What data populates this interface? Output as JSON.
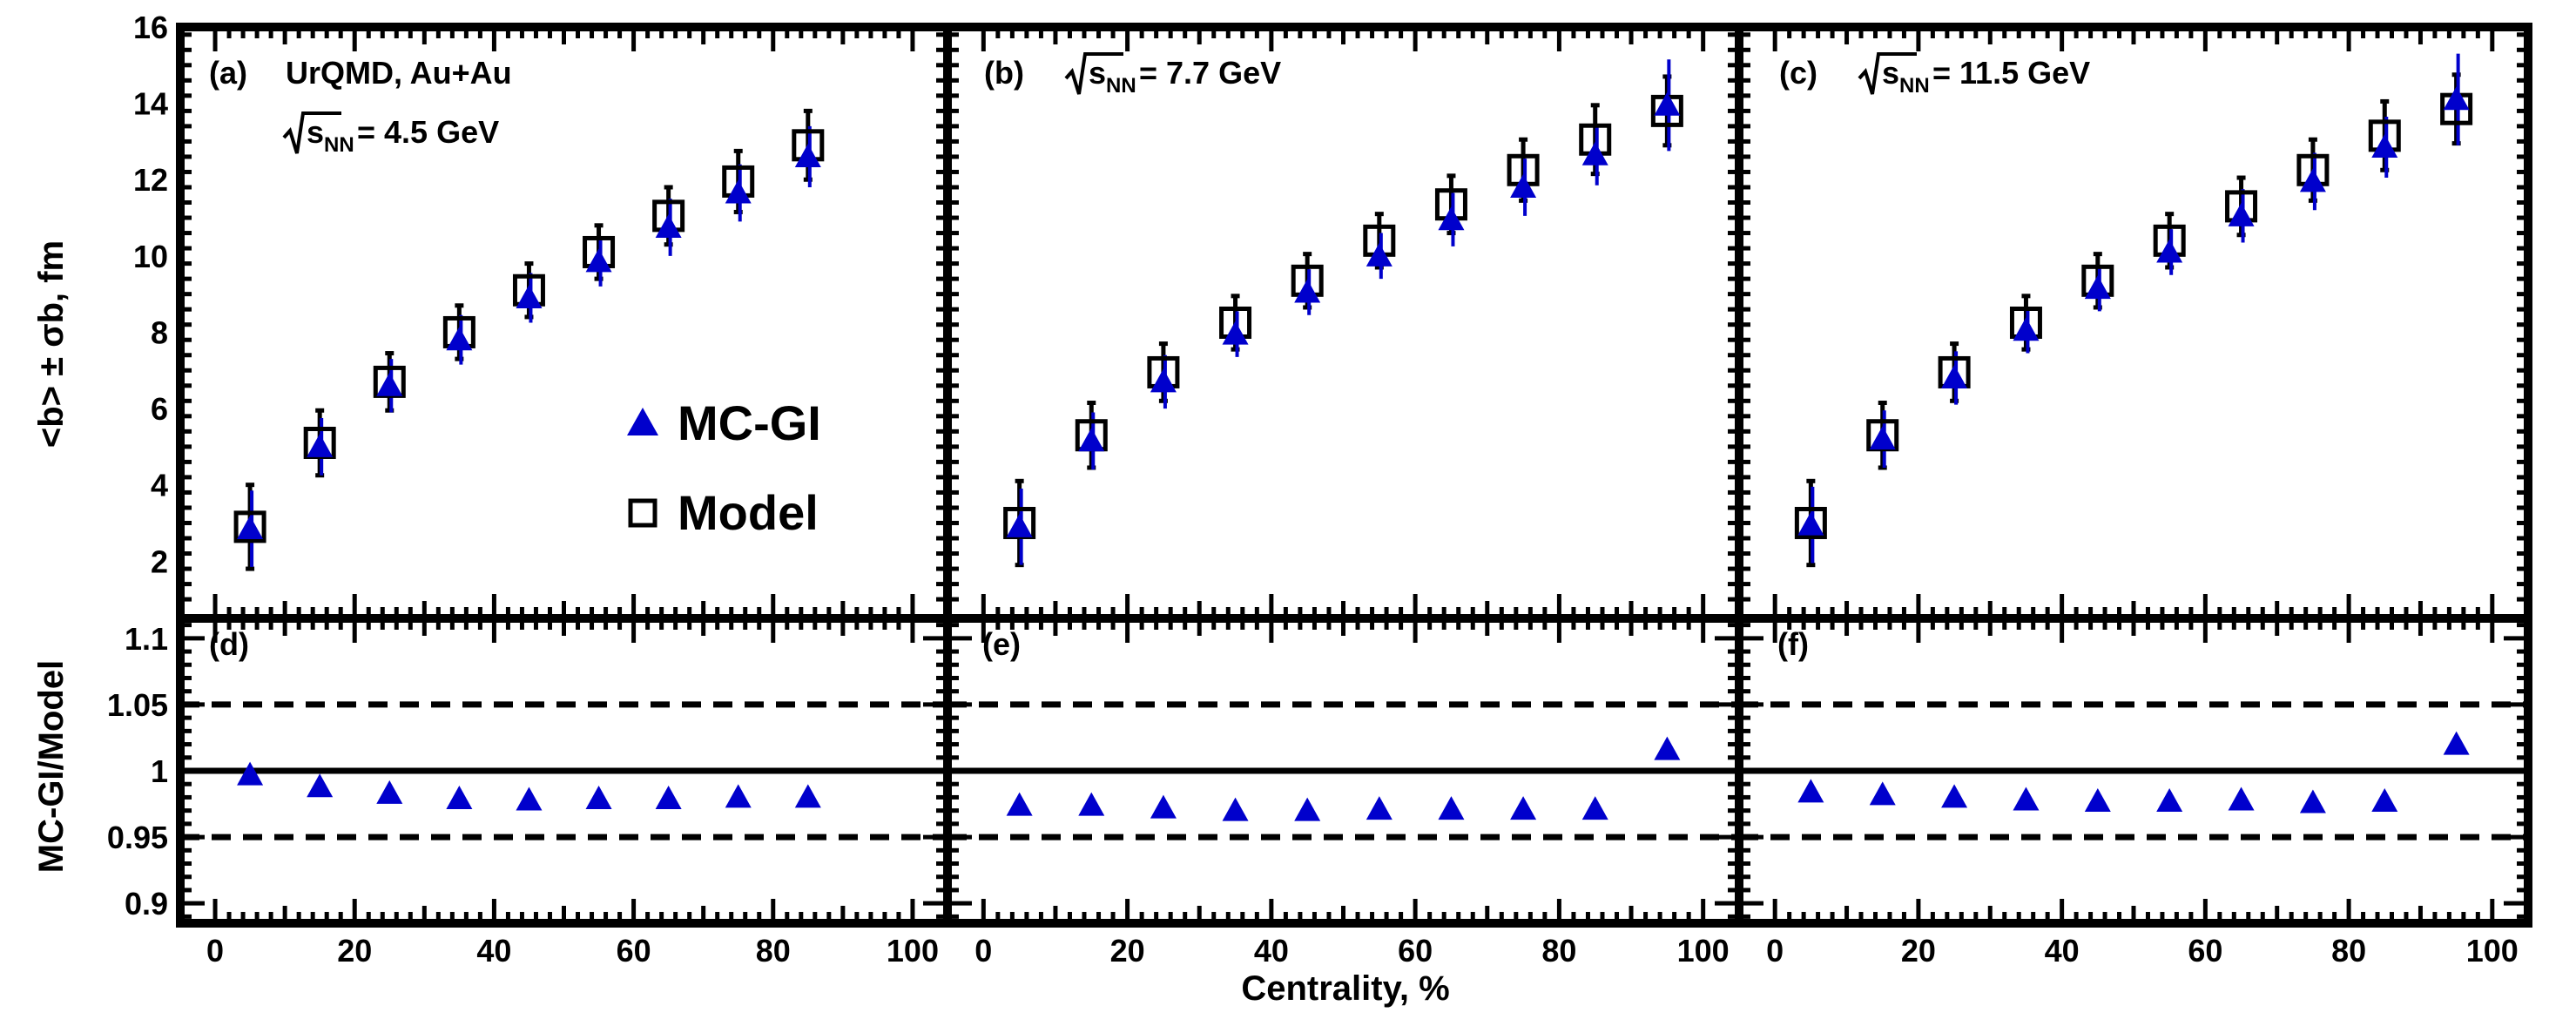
{
  "figure": {
    "ylabel_top": "<b> ± σb, fm",
    "ylabel_bottom": "MC-GI/Model",
    "xlabel": "Centrality, %",
    "legend": {
      "mcgi_label": "MC-GI",
      "model_label": "Model"
    },
    "colors": {
      "mcgi": "#0000cc",
      "model": "#000000"
    }
  },
  "chart_data": [
    {
      "type": "scatter",
      "panel": "(a)",
      "system": "UrQMD, Au+Au",
      "energy": "= 4.5 GeV",
      "energy_symbol": "√sNN",
      "x": [
        5,
        15,
        25,
        35,
        45,
        55,
        65,
        75,
        85
      ],
      "series": [
        {
          "name": "MC-GI",
          "values": [
            2.85,
            5.0,
            6.6,
            7.8,
            8.9,
            9.85,
            10.75,
            11.65,
            12.6
          ],
          "errors": [
            1.0,
            0.75,
            0.7,
            0.65,
            0.65,
            0.65,
            0.75,
            0.75,
            0.8
          ]
        },
        {
          "name": "Model",
          "values": [
            2.9,
            5.1,
            6.7,
            8.0,
            9.1,
            10.1,
            11.05,
            11.95,
            12.9
          ],
          "errors": [
            1.1,
            0.85,
            0.75,
            0.7,
            0.7,
            0.7,
            0.75,
            0.8,
            0.9
          ]
        }
      ],
      "xlim": [
        -5,
        105
      ],
      "ylim": [
        0.5,
        16
      ],
      "ylabel": "<b> ± σb, fm"
    },
    {
      "type": "scatter",
      "panel": "(b)",
      "energy": "= 7.7 GeV",
      "energy_symbol": "√sNN",
      "x": [
        5,
        15,
        25,
        35,
        45,
        55,
        65,
        75,
        85,
        95
      ],
      "series": [
        {
          "name": "MC-GI",
          "values": [
            2.9,
            5.15,
            6.7,
            7.95,
            9.05,
            10.0,
            10.95,
            11.8,
            12.65,
            13.95
          ],
          "errors": [
            1.0,
            0.75,
            0.7,
            0.6,
            0.6,
            0.6,
            0.7,
            0.75,
            0.8,
            1.2
          ]
        },
        {
          "name": "Model",
          "values": [
            3.0,
            5.3,
            6.95,
            8.25,
            9.35,
            10.4,
            11.35,
            12.25,
            13.05,
            13.8
          ],
          "errors": [
            1.1,
            0.85,
            0.75,
            0.7,
            0.7,
            0.7,
            0.75,
            0.8,
            0.9,
            0.9
          ]
        }
      ],
      "xlim": [
        -5,
        105
      ],
      "ylim": [
        0.5,
        16
      ]
    },
    {
      "type": "scatter",
      "panel": "(c)",
      "energy": "= 11.5 GeV",
      "energy_symbol": "√sNN",
      "x": [
        5,
        15,
        25,
        35,
        45,
        55,
        65,
        75,
        85,
        95
      ],
      "series": [
        {
          "name": "MC-GI",
          "values": [
            2.95,
            5.2,
            6.8,
            8.05,
            9.15,
            10.1,
            11.05,
            11.95,
            12.85,
            14.1
          ],
          "errors": [
            1.0,
            0.75,
            0.7,
            0.6,
            0.6,
            0.6,
            0.7,
            0.75,
            0.8,
            1.2
          ]
        },
        {
          "name": "Model",
          "values": [
            3.0,
            5.3,
            6.95,
            8.25,
            9.35,
            10.4,
            11.3,
            12.25,
            13.15,
            13.85
          ],
          "errors": [
            1.1,
            0.85,
            0.75,
            0.7,
            0.7,
            0.7,
            0.75,
            0.8,
            0.9,
            0.9
          ]
        }
      ],
      "xlim": [
        -5,
        105
      ],
      "ylim": [
        0.5,
        16
      ]
    },
    {
      "type": "scatter",
      "panel": "(d)",
      "x": [
        5,
        15,
        25,
        35,
        45,
        55,
        65,
        75,
        85
      ],
      "series": [
        {
          "name": "MC-GI/Model",
          "values": [
            0.997,
            0.988,
            0.983,
            0.979,
            0.978,
            0.979,
            0.979,
            0.98,
            0.98
          ]
        }
      ],
      "reference_lines": {
        "solid": 1.0,
        "dashed": [
          1.05,
          0.95
        ]
      },
      "xlim": [
        -5,
        105
      ],
      "ylim": [
        0.885,
        1.115
      ],
      "ylabel": "MC-GI/Model"
    },
    {
      "type": "scatter",
      "panel": "(e)",
      "x": [
        5,
        15,
        25,
        35,
        45,
        55,
        65,
        75,
        85,
        95
      ],
      "series": [
        {
          "name": "MC-GI/Model",
          "values": [
            0.974,
            0.974,
            0.972,
            0.97,
            0.97,
            0.971,
            0.971,
            0.971,
            0.971,
            1.016
          ]
        }
      ],
      "reference_lines": {
        "solid": 1.0,
        "dashed": [
          1.05,
          0.95
        ]
      },
      "xlim": [
        -5,
        105
      ],
      "ylim": [
        0.885,
        1.115
      ]
    },
    {
      "type": "scatter",
      "panel": "(f)",
      "x": [
        5,
        15,
        25,
        35,
        45,
        55,
        65,
        75,
        85,
        95
      ],
      "series": [
        {
          "name": "MC-GI/Model",
          "values": [
            0.984,
            0.982,
            0.98,
            0.978,
            0.977,
            0.977,
            0.978,
            0.976,
            0.977,
            1.02
          ]
        }
      ],
      "reference_lines": {
        "solid": 1.0,
        "dashed": [
          1.05,
          0.95
        ]
      },
      "xlim": [
        -5,
        105
      ],
      "ylim": [
        0.885,
        1.115
      ]
    }
  ],
  "axes": {
    "top_yticks": [
      "2",
      "4",
      "6",
      "8",
      "10",
      "12",
      "14",
      "16"
    ],
    "bottom_yticks": [
      "0.9",
      "0.95",
      "1",
      "1.05",
      "1.1"
    ],
    "xticks": [
      "0",
      "20",
      "40",
      "60",
      "80",
      "100"
    ]
  }
}
